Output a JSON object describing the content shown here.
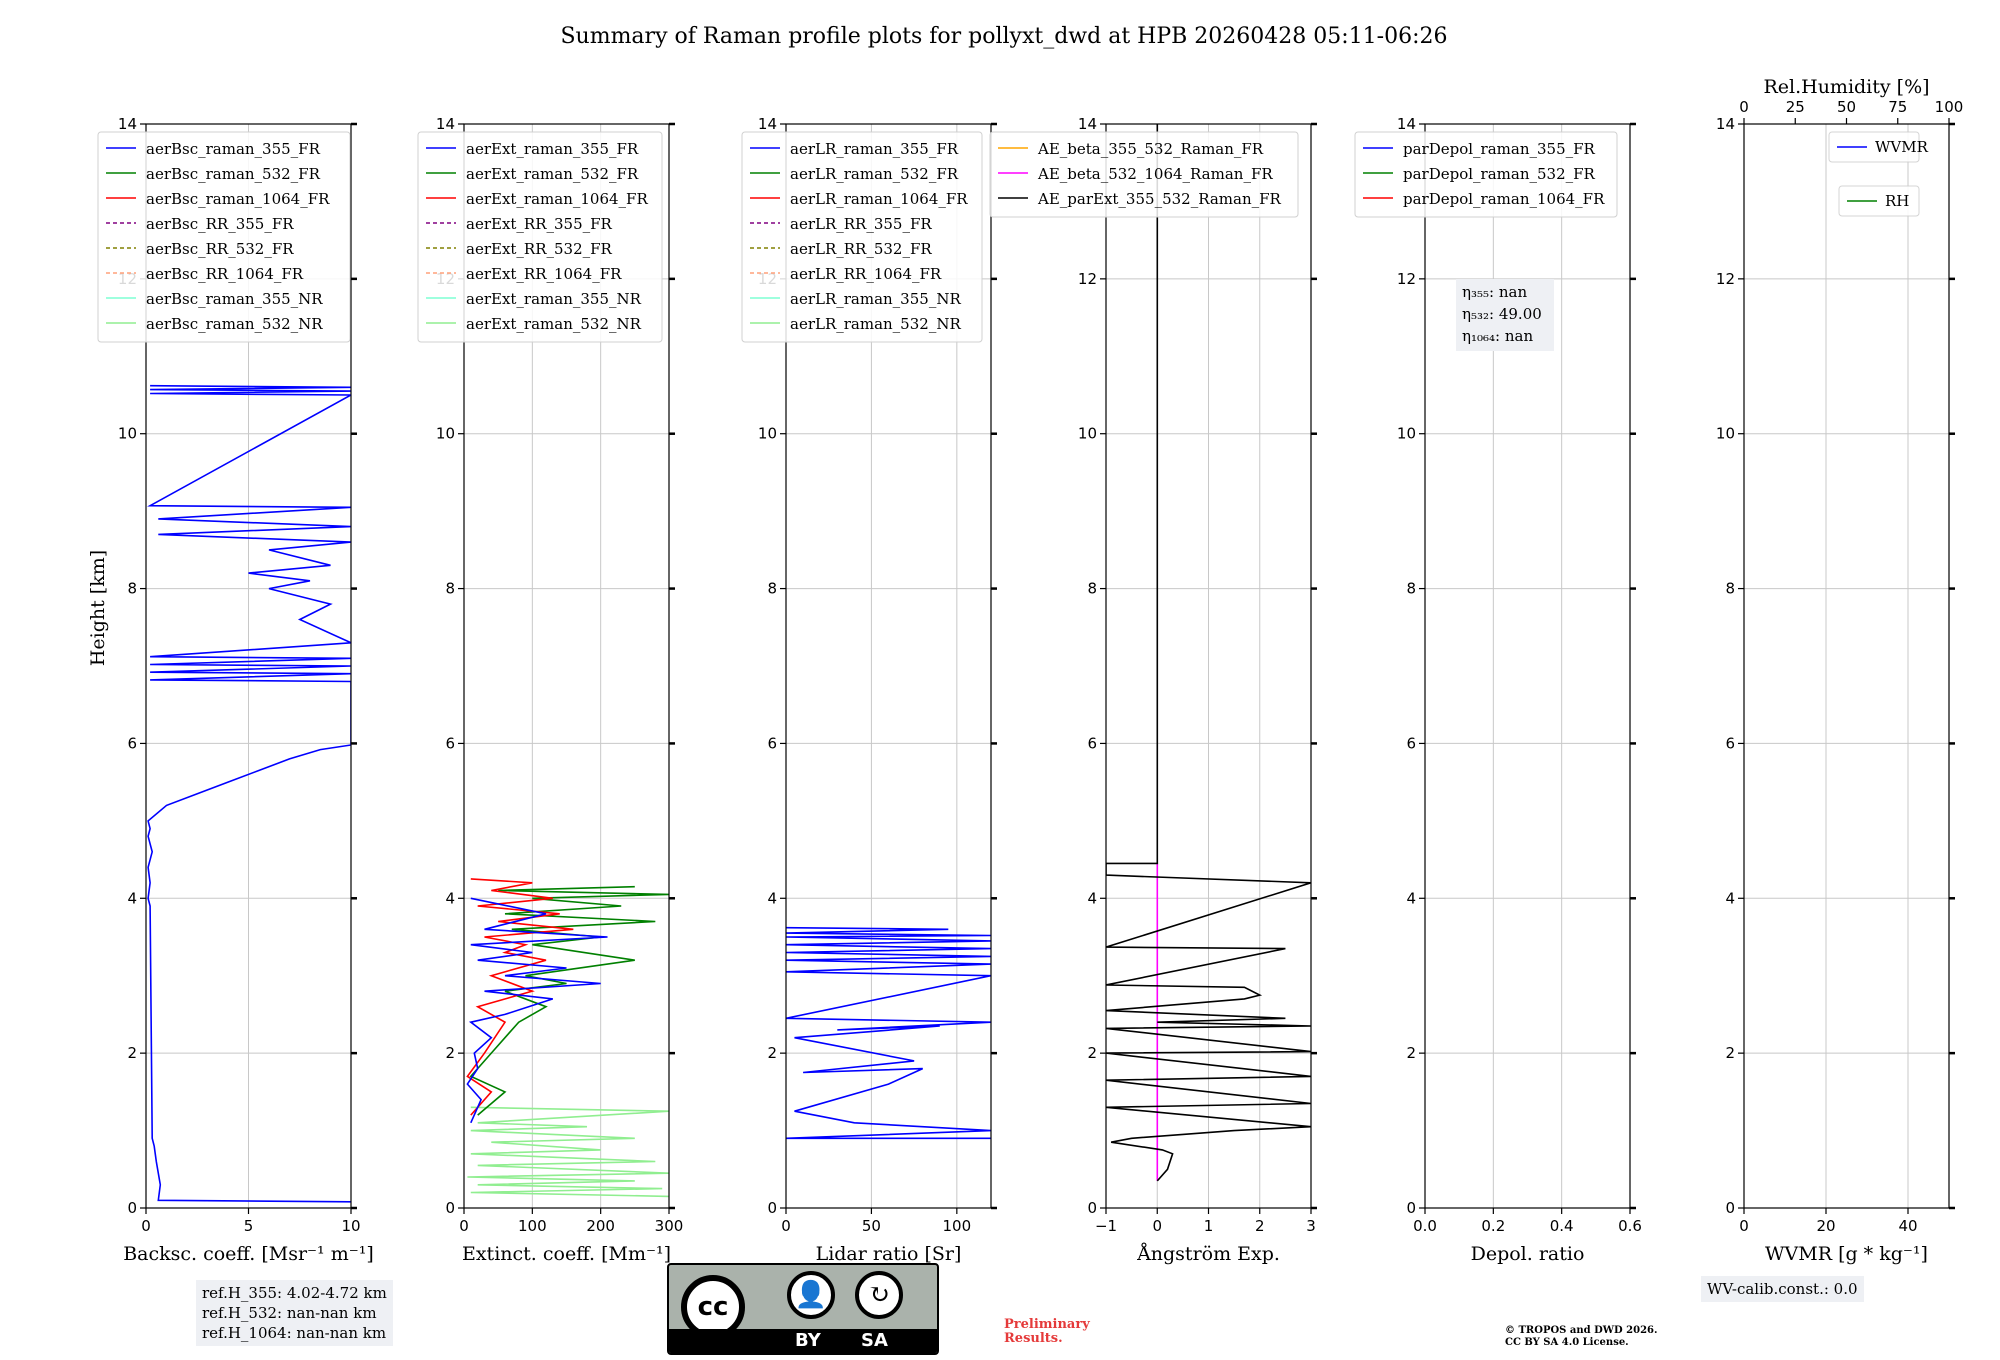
{
  "title": "Summary of Raman profile plots for pollyxt_dwd at HPB 20260428 05:11-06:26",
  "ylabel": "Height [km]",
  "chart_data": [
    {
      "type": "line",
      "xlabel": "Backsc. coeff. [Msr⁻¹ m⁻¹]",
      "xlim": [
        0,
        10
      ],
      "xticks": [
        0,
        5,
        10
      ],
      "xtick_labels": [
        "0",
        "5",
        "10"
      ],
      "ylim": [
        0,
        14
      ],
      "legend": [
        {
          "name": "aerBsc_raman_355_FR",
          "color": "#0000ff",
          "dash": false
        },
        {
          "name": "aerBsc_raman_532_FR",
          "color": "#008000",
          "dash": false
        },
        {
          "name": "aerBsc_raman_1064_FR",
          "color": "#ff0000",
          "dash": false
        },
        {
          "name": "aerBsc_RR_355_FR",
          "color": "#800080",
          "dash": true
        },
        {
          "name": "aerBsc_RR_532_FR",
          "color": "#808000",
          "dash": true
        },
        {
          "name": "aerBsc_RR_1064_FR",
          "color": "#ffa07a",
          "dash": true
        },
        {
          "name": "aerBsc_raman_355_NR",
          "color": "#7fffd4",
          "dash": false
        },
        {
          "name": "aerBsc_raman_532_NR",
          "color": "#90ee90",
          "dash": false
        }
      ],
      "series": [
        {
          "name": "aerBsc_raman_355_FR",
          "color": "#0000ff",
          "x": [
            10,
            0.6,
            0.7,
            0.5,
            0.4,
            0.3,
            0.2,
            0.1,
            0.2,
            0.1,
            0.3,
            0.1,
            0.2,
            0.1,
            1.0,
            2.5,
            4.0,
            5.5,
            7.0,
            8.5,
            10,
            10,
            0.2,
            10,
            0.2,
            10,
            0.2,
            10,
            0.2,
            10,
            7.5,
            9,
            6,
            8,
            5,
            9,
            6,
            10,
            0.6,
            10,
            0.6,
            10,
            0.2,
            10,
            0.2,
            10,
            0.2,
            10,
            0.2
          ],
          "y": [
            0.08,
            0.1,
            0.3,
            0.6,
            0.8,
            0.9,
            3.9,
            4.0,
            4.2,
            4.4,
            4.6,
            4.8,
            4.9,
            5.0,
            5.2,
            5.35,
            5.5,
            5.65,
            5.8,
            5.92,
            5.98,
            6.8,
            6.82,
            6.9,
            6.92,
            7.0,
            7.02,
            7.1,
            7.12,
            7.3,
            7.6,
            7.8,
            8.0,
            8.1,
            8.2,
            8.3,
            8.5,
            8.6,
            8.7,
            8.8,
            8.9,
            9.05,
            9.07,
            10.5,
            10.52,
            10.55,
            10.57,
            10.6,
            10.62
          ]
        }
      ]
    },
    {
      "type": "line",
      "xlabel": "Extinct. coeff. [Mm⁻¹]",
      "xlim": [
        0,
        300
      ],
      "xticks": [
        0,
        100,
        200,
        300
      ],
      "xtick_labels": [
        "0",
        "100",
        "200",
        "300"
      ],
      "ylim": [
        0,
        14
      ],
      "legend": [
        {
          "name": "aerExt_raman_355_FR",
          "color": "#0000ff",
          "dash": false
        },
        {
          "name": "aerExt_raman_532_FR",
          "color": "#008000",
          "dash": false
        },
        {
          "name": "aerExt_raman_1064_FR",
          "color": "#ff0000",
          "dash": false
        },
        {
          "name": "aerExt_RR_355_FR",
          "color": "#800080",
          "dash": true
        },
        {
          "name": "aerExt_RR_532_FR",
          "color": "#808000",
          "dash": true
        },
        {
          "name": "aerExt_RR_1064_FR",
          "color": "#ffa07a",
          "dash": true
        },
        {
          "name": "aerExt_raman_355_NR",
          "color": "#7fffd4",
          "dash": false
        },
        {
          "name": "aerExt_raman_532_NR",
          "color": "#90ee90",
          "dash": false
        }
      ],
      "series": [
        {
          "name": "aerExt_raman_532_NR",
          "color": "#90ee90",
          "x": [
            300,
            10,
            290,
            20,
            250,
            5,
            300,
            20,
            280,
            10,
            200,
            40,
            250,
            10,
            180,
            20,
            300,
            10
          ],
          "y": [
            0.15,
            0.2,
            0.25,
            0.3,
            0.35,
            0.4,
            0.45,
            0.55,
            0.6,
            0.7,
            0.75,
            0.85,
            0.9,
            1.0,
            1.05,
            1.1,
            1.25,
            1.3
          ]
        },
        {
          "name": "aerExt_raman_532_FR",
          "color": "#008000",
          "x": [
            20,
            60,
            10,
            40,
            80,
            120,
            60,
            150,
            90,
            250,
            100,
            200,
            70,
            280,
            60,
            230,
            100,
            300,
            50,
            250
          ],
          "y": [
            1.2,
            1.5,
            1.7,
            2.0,
            2.4,
            2.6,
            2.8,
            2.9,
            3.0,
            3.2,
            3.4,
            3.5,
            3.6,
            3.7,
            3.8,
            3.9,
            4.0,
            4.05,
            4.1,
            4.15
          ]
        },
        {
          "name": "aerExt_raman_1064_FR",
          "color": "#ff0000",
          "x": [
            10,
            40,
            5,
            30,
            60,
            20,
            100,
            40,
            120,
            60,
            90,
            30,
            160,
            50,
            140,
            20,
            130,
            40,
            100,
            10
          ],
          "y": [
            1.2,
            1.5,
            1.7,
            2.0,
            2.4,
            2.6,
            2.8,
            3.0,
            3.2,
            3.3,
            3.4,
            3.5,
            3.6,
            3.7,
            3.8,
            3.9,
            4.0,
            4.1,
            4.2,
            4.25
          ]
        },
        {
          "name": "aerExt_raman_355_FR",
          "color": "#0000ff",
          "x": [
            10,
            25,
            5,
            20,
            15,
            40,
            10,
            60,
            130,
            30,
            200,
            60,
            150,
            20,
            100,
            10,
            210,
            30,
            120,
            10
          ],
          "y": [
            1.1,
            1.4,
            1.6,
            1.8,
            2.0,
            2.2,
            2.4,
            2.5,
            2.7,
            2.8,
            2.9,
            3.0,
            3.1,
            3.2,
            3.3,
            3.4,
            3.5,
            3.6,
            3.8,
            4.0
          ]
        }
      ]
    },
    {
      "type": "line",
      "xlabel": "Lidar ratio [Sr]",
      "xlim": [
        0,
        120
      ],
      "xticks": [
        0,
        50,
        100
      ],
      "xtick_labels": [
        "0",
        "50",
        "100"
      ],
      "ylim": [
        0,
        14
      ],
      "legend": [
        {
          "name": "aerLR_raman_355_FR",
          "color": "#0000ff",
          "dash": false
        },
        {
          "name": "aerLR_raman_532_FR",
          "color": "#008000",
          "dash": false
        },
        {
          "name": "aerLR_raman_1064_FR",
          "color": "#ff0000",
          "dash": false
        },
        {
          "name": "aerLR_RR_355_FR",
          "color": "#800080",
          "dash": true
        },
        {
          "name": "aerLR_RR_532_FR",
          "color": "#808000",
          "dash": true
        },
        {
          "name": "aerLR_RR_1064_FR",
          "color": "#ffa07a",
          "dash": true
        },
        {
          "name": "aerLR_raman_355_NR",
          "color": "#7fffd4",
          "dash": false
        },
        {
          "name": "aerLR_raman_532_NR",
          "color": "#90ee90",
          "dash": false
        }
      ],
      "series": [
        {
          "name": "aerLR_raman_355_FR",
          "color": "#0000ff",
          "x": [
            120,
            0,
            120,
            40,
            5,
            60,
            80,
            10,
            75,
            5,
            90,
            30,
            120,
            0,
            120,
            0,
            120,
            0,
            120,
            0,
            120,
            0,
            120,
            0,
            120,
            0,
            95,
            0
          ],
          "y": [
            0.9,
            0.9,
            1.0,
            1.1,
            1.25,
            1.6,
            1.8,
            1.75,
            1.9,
            2.2,
            2.35,
            2.3,
            2.4,
            2.45,
            3.0,
            3.05,
            3.15,
            3.2,
            3.25,
            3.3,
            3.35,
            3.4,
            3.45,
            3.5,
            3.52,
            3.55,
            3.6,
            3.62
          ]
        }
      ]
    },
    {
      "type": "line",
      "xlabel": "Ångström Exp.",
      "xlim": [
        -1,
        3
      ],
      "xticks": [
        -1,
        0,
        1,
        2,
        3
      ],
      "xtick_labels": [
        "−1",
        "0",
        "1",
        "2",
        "3"
      ],
      "ylim": [
        0,
        14
      ],
      "legend": [
        {
          "name": "AE_beta_355_532_Raman_FR",
          "color": "#ffa500",
          "dash": false
        },
        {
          "name": "AE_beta_532_1064_Raman_FR",
          "color": "#ff00ff",
          "dash": false
        },
        {
          "name": "AE_parExt_355_532_Raman_FR",
          "color": "#000000",
          "dash": false
        }
      ],
      "series": [
        {
          "name": "AE_beta_532_1064_Raman_FR",
          "color": "#ff00ff",
          "x": [
            0,
            0
          ],
          "y": [
            0.35,
            4.45
          ]
        },
        {
          "name": "AE_parExt_355_532_Raman_FR",
          "color": "#000000",
          "x": [
            0,
            0.2,
            0.3,
            0.1,
            -0.9,
            -0.5,
            0.5,
            1.5,
            3.0,
            -1.0,
            3.0,
            -1.0,
            3.0,
            -1.0,
            3.0,
            -1.0,
            3.0,
            0.0,
            2.5,
            -1.0,
            1.7,
            2.0,
            1.7,
            -1.0,
            2.5,
            -1.0,
            3.0,
            -1.0,
            -1.0,
            0.0,
            0.0,
            0.0
          ],
          "y": [
            0.35,
            0.5,
            0.7,
            0.75,
            0.85,
            0.9,
            0.95,
            1.0,
            1.05,
            1.3,
            1.35,
            1.65,
            1.7,
            2.0,
            2.02,
            2.32,
            2.35,
            2.4,
            2.45,
            2.55,
            2.7,
            2.75,
            2.85,
            2.88,
            3.35,
            3.37,
            4.2,
            4.3,
            4.45,
            4.45,
            6.0,
            14.0
          ]
        }
      ]
    },
    {
      "type": "line",
      "xlabel": "Depol. ratio",
      "xlim": [
        0,
        0.6
      ],
      "xticks": [
        0,
        0.2,
        0.4,
        0.6
      ],
      "xtick_labels": [
        "0.0",
        "0.2",
        "0.4",
        "0.6"
      ],
      "ylim": [
        0,
        14
      ],
      "legend": [
        {
          "name": "parDepol_raman_355_FR",
          "color": "#0000ff",
          "dash": false
        },
        {
          "name": "parDepol_raman_532_FR",
          "color": "#008000",
          "dash": false
        },
        {
          "name": "parDepol_raman_1064_FR",
          "color": "#ff0000",
          "dash": false
        }
      ],
      "annotation": [
        "η₃₅₅: nan",
        "η₅₃₂: 49.00",
        "η₁₀₆₄: nan"
      ],
      "series": []
    },
    {
      "type": "line",
      "xlabel": "WVMR [g * kg⁻¹]",
      "xlim": [
        0,
        50
      ],
      "xticks": [
        0,
        20,
        40
      ],
      "xtick_labels": [
        "0",
        "20",
        "40"
      ],
      "ylim": [
        0,
        14
      ],
      "top_axis_label": "Rel.Humidity [%]",
      "top_xlim": [
        0,
        100
      ],
      "top_xticks": [
        0,
        25,
        50,
        75,
        100
      ],
      "top_xtick_labels": [
        "0",
        "25",
        "50",
        "75",
        "100"
      ],
      "legend": [
        {
          "name": "WVMR",
          "color": "#0000ff",
          "dash": false
        },
        {
          "name": "RH",
          "color": "#008000",
          "dash": false
        }
      ],
      "series": []
    }
  ],
  "yticks": [
    0,
    2,
    4,
    6,
    8,
    10,
    12,
    14
  ],
  "ytick_labels": [
    "0",
    "2",
    "4",
    "6",
    "8",
    "10",
    "12",
    "14"
  ],
  "ref_box": [
    "ref.H_355: 4.02-4.72 km",
    "ref.H_532: nan-nan km",
    "ref.H_1064: nan-nan km"
  ],
  "wv_calib": "WV-calib.const.: 0.0",
  "license_badge": {
    "cc": "cc",
    "by": "BY",
    "sa": "SA"
  },
  "preliminary": [
    "Preliminary",
    "Results."
  ],
  "copyright": [
    "© TROPOS and DWD 2026.",
    "CC BY SA 4.0 License."
  ]
}
